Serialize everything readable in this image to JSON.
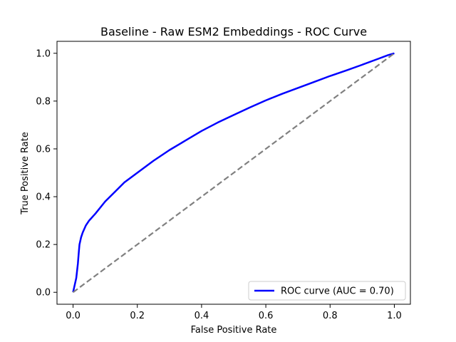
{
  "chart_data": {
    "type": "line",
    "title": "Baseline - Raw ESM2 Embeddings - ROC Curve",
    "xlabel": "False Positive Rate",
    "ylabel": "True Positive Rate",
    "xlim": [
      -0.05,
      1.05
    ],
    "ylim": [
      -0.05,
      1.05
    ],
    "xticks": [
      0.0,
      0.2,
      0.4,
      0.6,
      0.8,
      1.0
    ],
    "yticks": [
      0.0,
      0.2,
      0.4,
      0.6,
      0.8,
      1.0
    ],
    "xtick_labels": [
      "0.0",
      "0.2",
      "0.4",
      "0.6",
      "0.8",
      "1.0"
    ],
    "ytick_labels": [
      "0.0",
      "0.2",
      "0.4",
      "0.6",
      "0.8",
      "1.0"
    ],
    "grid": false,
    "legend_position": "lower-right",
    "series": [
      {
        "name": "ROC curve (AUC = 0.70)",
        "color": "#0000ff",
        "style": "solid",
        "x": [
          0.0,
          0.01,
          0.015,
          0.018,
          0.02,
          0.025,
          0.03,
          0.04,
          0.05,
          0.07,
          0.1,
          0.13,
          0.16,
          0.2,
          0.25,
          0.3,
          0.35,
          0.4,
          0.45,
          0.5,
          0.55,
          0.6,
          0.65,
          0.7,
          0.75,
          0.8,
          0.85,
          0.9,
          0.95,
          0.98,
          1.0
        ],
        "y": [
          0.0,
          0.06,
          0.12,
          0.17,
          0.2,
          0.23,
          0.25,
          0.28,
          0.3,
          0.33,
          0.38,
          0.42,
          0.46,
          0.5,
          0.55,
          0.595,
          0.635,
          0.675,
          0.71,
          0.742,
          0.773,
          0.803,
          0.83,
          0.855,
          0.88,
          0.905,
          0.928,
          0.952,
          0.977,
          0.992,
          1.0
        ]
      },
      {
        "name": "",
        "color": "#808080",
        "style": "dashed",
        "x": [
          0.0,
          1.0
        ],
        "y": [
          0.0,
          1.0
        ]
      }
    ]
  }
}
